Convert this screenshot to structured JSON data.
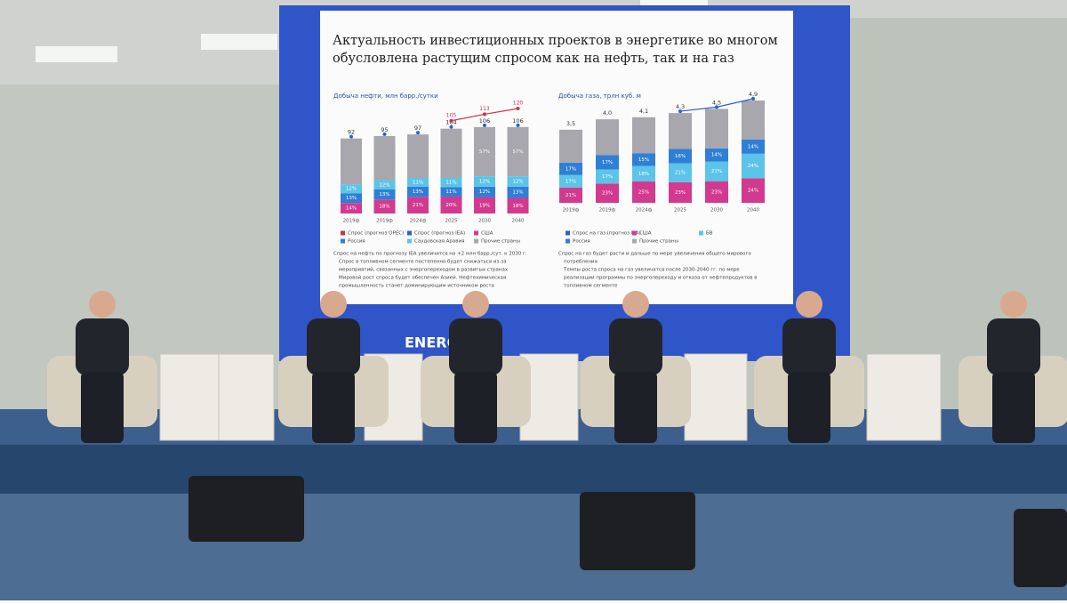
{
  "slide": {
    "title": [
      "Актуальность инвестиционных проектов в энергетике во многом",
      "обусловлена растущим спросом как на нефть, так и на газ"
    ],
    "bullets": [
      [
        "Спрос на нефть по прогнозу IEA увеличится на +2 млн барр./сут. к 2030 г.",
        "Спрос в топливном сегменте постепенно будет снижаться из-за",
        "мероприятий, связанных с энергопереходом в развитых странах",
        "Мировой рост спроса будет обеспечен Азией. Нефтехимическая",
        "промышленность станет доминирующим источником роста"
      ],
      [
        "Спрос на газ будет расти и дальше по мере увеличения общего мирового",
        "потребления",
        "Темпы роста спроса на газ увеличатся после 2030-2040 гг. по мере",
        "реализации программы по энергопереходу и отказа от нефтепродуктов в",
        "топливном сегменте"
      ]
    ]
  },
  "backdrop": {
    "brand": "ENERGY"
  },
  "chart_data": [
    {
      "type": "bar",
      "title": "Добыча нефти, млн барр./сутки",
      "categories": [
        "2019ф",
        "2019ф",
        "2024ф",
        "2025",
        "2030",
        "2040"
      ],
      "totals": [
        92,
        95,
        97,
        104,
        106,
        106
      ],
      "segments": [
        {
          "name": "США",
          "color": "#d23a8f",
          "values": [
            14,
            18,
            21,
            20,
            19,
            18
          ],
          "value_labels": [
            "14%",
            "18%",
            "21%",
            "20%",
            "19%",
            "18%"
          ]
        },
        {
          "name": "Россия",
          "color": "#2f7fd6",
          "values": [
            13,
            13,
            13,
            11,
            12,
            13
          ],
          "value_labels": [
            "13%",
            "13%",
            "13%",
            "11%",
            "12%",
            "13%"
          ]
        },
        {
          "name": "Саудовская Аравия",
          "color": "#5bc4e8",
          "values": [
            12,
            12,
            11,
            11,
            12,
            12
          ],
          "value_labels": [
            "12%",
            "12%",
            "11%",
            "11%",
            "12%",
            "12%"
          ]
        },
        {
          "name": "Прочие страны",
          "color": "#a7a7ad",
          "values": [
            61,
            57,
            55,
            58,
            57,
            57
          ],
          "value_labels": [
            null,
            null,
            null,
            null,
            "57%",
            "57%"
          ]
        }
      ],
      "lines": [
        {
          "name": "Спрос (прогноз OPEC)",
          "color": "#c8324a",
          "values": [
            null,
            null,
            null,
            105,
            113,
            120
          ]
        },
        {
          "name": "Спрос (прогноз IEA)",
          "color": "#2d5fd0",
          "totals": true
        }
      ]
    },
    {
      "type": "bar",
      "title": "Добыча газа, трлн куб. м",
      "categories": [
        "2019ф",
        "2019ф",
        "2024ф",
        "2025",
        "2030",
        "2040"
      ],
      "totals": [
        3.5,
        4.0,
        4.1,
        4.3,
        4.5,
        4.9
      ],
      "total_labels": [
        "3,5",
        "4,0",
        "4,1",
        "4,3",
        "4,5",
        "4,9"
      ],
      "segments": [
        {
          "name": "США",
          "color": "#d23a8f",
          "values": [
            21,
            23,
            25,
            23,
            23,
            24
          ],
          "value_labels": [
            "21%",
            "23%",
            "25%",
            "23%",
            "23%",
            "24%"
          ]
        },
        {
          "name": "БВ",
          "color": "#5bc4e8",
          "values": [
            17,
            17,
            18,
            21,
            21,
            24
          ],
          "value_labels": [
            "17%",
            "17%",
            "18%",
            "21%",
            "21%",
            "24%"
          ]
        },
        {
          "name": "Россия",
          "color": "#2f7fd6",
          "values": [
            17,
            17,
            15,
            16,
            14,
            14
          ],
          "value_labels": [
            "17%",
            "17%",
            "15%",
            "16%",
            "14%",
            "14%"
          ]
        },
        {
          "name": "Прочие страны",
          "color": "#a7a7ad",
          "values": [
            45,
            43,
            42,
            40,
            42,
            38
          ],
          "value_labels": [
            null,
            null,
            null,
            null,
            null,
            null
          ]
        }
      ],
      "lines": [
        {
          "name": "Спрос на газ (прогноз EIA)",
          "color": "#2d5fd0",
          "totals": true,
          "from": 3
        }
      ]
    }
  ]
}
